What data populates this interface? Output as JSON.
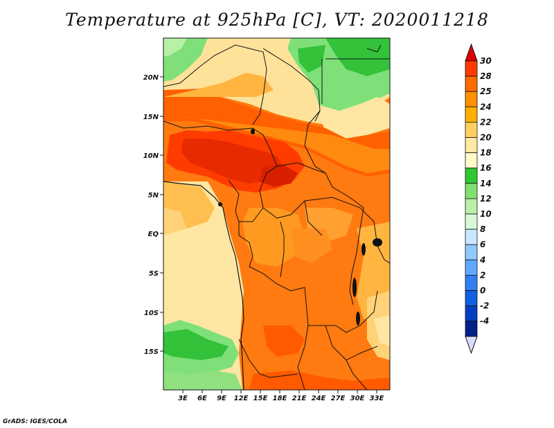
{
  "title": "Temperature at 925hPa [C], VT: 2020011218",
  "footer": "GrADS: IGES/COLA",
  "map": {
    "lat_labels": [
      "20N",
      "15N",
      "10N",
      "5N",
      "EQ",
      "5S",
      "10S",
      "15S"
    ],
    "lon_labels": [
      "3E",
      "6E",
      "9E",
      "12E",
      "15E",
      "18E",
      "21E",
      "24E",
      "27E",
      "30E",
      "33E"
    ]
  },
  "colorbar": {
    "labels": [
      "30",
      "28",
      "25",
      "24",
      "22",
      "20",
      "18",
      "16",
      "14",
      "12",
      "10",
      "8",
      "6",
      "4",
      "2",
      "0",
      "-2",
      "-4"
    ],
    "colors": [
      "#ff3a00",
      "#ff6a00",
      "#ff9000",
      "#ffb000",
      "#ffd060",
      "#ffe8a0",
      "#fffac8",
      "#30c830",
      "#80e070",
      "#b8f0a8",
      "#d8f8d8",
      "#c8e8ff",
      "#90c8ff",
      "#60a8ff",
      "#3080f0",
      "#1060e0",
      "#0040c0",
      "#00208a"
    ],
    "top_arrow_color": "#e00000",
    "bottom_arrow_color": "#d8dcff"
  }
}
